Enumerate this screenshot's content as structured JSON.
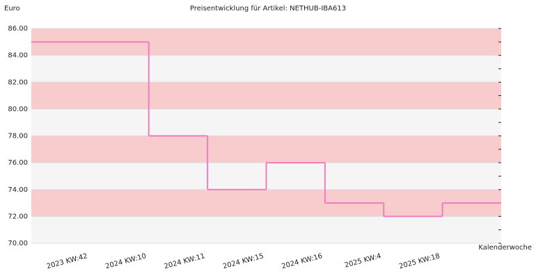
{
  "chart_data": {
    "type": "step",
    "title": "Preisentwicklung für Artikel: NETHUB-IBA613",
    "y_label": "Euro",
    "x_label": "Kalenderwoche",
    "categories": [
      "2023 KW:42",
      "2024 KW:10",
      "2024 KW:11",
      "2024 KW:15",
      "2024 KW:16",
      "2025 KW:4",
      "2025 KW:18"
    ],
    "values": [
      85,
      78,
      74,
      76,
      73,
      72,
      73
    ],
    "color": "#f07cc0",
    "band_colors": [
      "#f8cccc",
      "#f5f5f5"
    ],
    "ylim": [
      70,
      86
    ],
    "yticks": [
      {
        "value": 70,
        "label": "70.00"
      },
      {
        "value": 72,
        "label": "72.00"
      },
      {
        "value": 74,
        "label": "74.00"
      },
      {
        "value": 76,
        "label": "76.00"
      },
      {
        "value": 78,
        "label": "78.00"
      },
      {
        "value": 80,
        "label": "80.00"
      },
      {
        "value": 82,
        "label": "82.00"
      },
      {
        "value": 84,
        "label": "84.00"
      },
      {
        "value": 86,
        "label": "86.00"
      }
    ]
  }
}
